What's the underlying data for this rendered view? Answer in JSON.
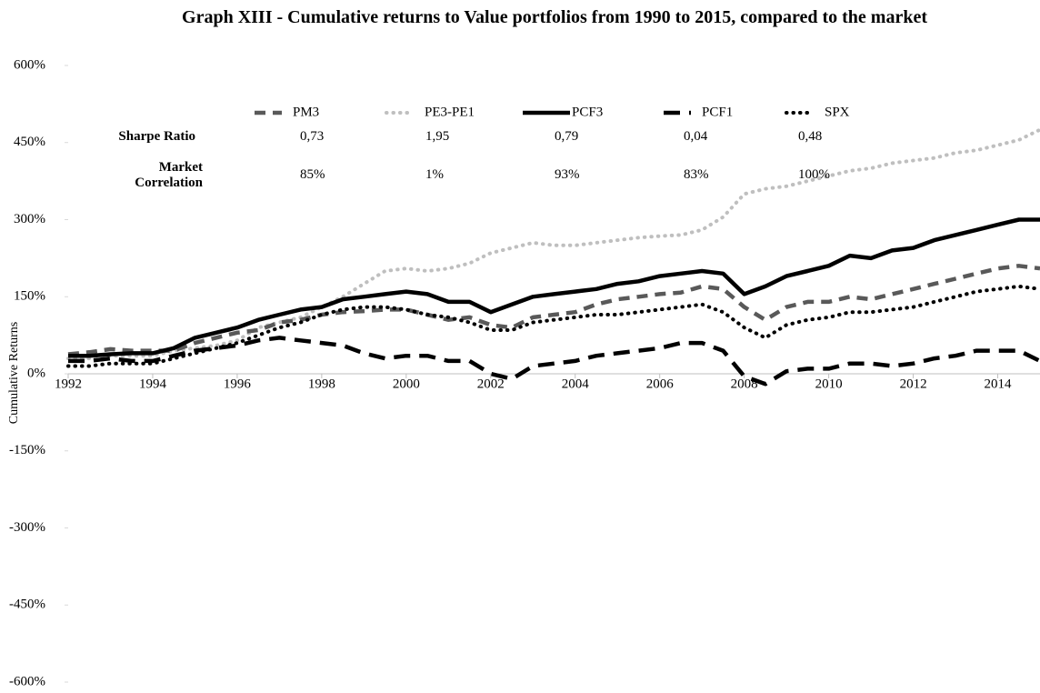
{
  "chart_data": {
    "type": "line",
    "title": "Graph XIII - Cumulative returns to Value portfolios from 1990 to 2015, compared to the market",
    "y_label": "Cumulative Returns",
    "x": [
      1992,
      1992.5,
      1993,
      1993.5,
      1994,
      1994.5,
      1995,
      1995.5,
      1996,
      1996.5,
      1997,
      1997.5,
      1998,
      1998.5,
      1999,
      1999.5,
      2000,
      2000.5,
      2001,
      2001.5,
      2002,
      2002.5,
      2003,
      2003.5,
      2004,
      2004.5,
      2005,
      2005.5,
      2006,
      2006.5,
      2007,
      2007.5,
      2008,
      2008.5,
      2009,
      2009.5,
      2010,
      2010.5,
      2011,
      2011.5,
      2012,
      2012.5,
      2013,
      2013.5,
      2014,
      2014.5,
      2015
    ],
    "series": [
      {
        "name": "PM3",
        "color": "#595959",
        "dash": "dash",
        "values": [
          38,
          42,
          48,
          45,
          45,
          45,
          60,
          70,
          80,
          85,
          100,
          105,
          115,
          120,
          122,
          125,
          125,
          115,
          105,
          110,
          95,
          90,
          110,
          115,
          120,
          135,
          145,
          150,
          155,
          158,
          170,
          165,
          130,
          105,
          130,
          140,
          140,
          150,
          145,
          155,
          165,
          175,
          185,
          195,
          205,
          210,
          205
        ]
      },
      {
        "name": "PE3-PE1",
        "color": "#bfbfbf",
        "dash": "dot",
        "values": [
          30,
          30,
          35,
          35,
          35,
          45,
          50,
          55,
          65,
          90,
          100,
          110,
          130,
          150,
          175,
          200,
          205,
          200,
          205,
          215,
          235,
          245,
          255,
          250,
          250,
          255,
          260,
          265,
          268,
          270,
          280,
          305,
          350,
          360,
          365,
          375,
          385,
          395,
          400,
          410,
          415,
          420,
          430,
          435,
          445,
          455,
          475
        ]
      },
      {
        "name": "PCF3",
        "color": "#000000",
        "dash": "solid",
        "values": [
          35,
          35,
          38,
          40,
          40,
          50,
          70,
          80,
          90,
          105,
          115,
          125,
          130,
          145,
          150,
          155,
          160,
          155,
          140,
          140,
          120,
          135,
          150,
          155,
          160,
          165,
          175,
          180,
          190,
          195,
          200,
          195,
          155,
          170,
          190,
          200,
          210,
          230,
          225,
          240,
          245,
          260,
          270,
          280,
          290,
          300,
          300
        ]
      },
      {
        "name": "PCF1",
        "color": "#000000",
        "dash": "longdash",
        "values": [
          25,
          25,
          30,
          25,
          25,
          35,
          45,
          50,
          55,
          65,
          70,
          65,
          60,
          55,
          40,
          30,
          35,
          35,
          25,
          25,
          0,
          -10,
          15,
          20,
          25,
          35,
          40,
          45,
          50,
          60,
          60,
          45,
          -5,
          -20,
          5,
          10,
          10,
          20,
          20,
          15,
          20,
          30,
          35,
          45,
          45,
          45,
          25
        ]
      },
      {
        "name": "SPX",
        "color": "#000000",
        "dash": "dot",
        "values": [
          15,
          15,
          20,
          20,
          20,
          30,
          40,
          50,
          60,
          75,
          90,
          100,
          115,
          125,
          130,
          130,
          125,
          115,
          110,
          100,
          85,
          85,
          100,
          105,
          110,
          115,
          115,
          120,
          125,
          130,
          135,
          120,
          90,
          70,
          95,
          105,
          110,
          120,
          120,
          125,
          130,
          140,
          150,
          160,
          165,
          170,
          165
        ]
      }
    ],
    "stats": [
      {
        "label": "Sharpe Ratio",
        "values": [
          "0,73",
          "1,95",
          "0,79",
          "0,04",
          "0,48"
        ]
      },
      {
        "label": "Market Correlation",
        "values": [
          "85%",
          "1%",
          "93%",
          "83%",
          "100%"
        ]
      }
    ],
    "xlim": [
      1992,
      2015
    ],
    "xticks": [
      1992,
      1994,
      1996,
      1998,
      2000,
      2002,
      2004,
      2006,
      2008,
      2010,
      2012,
      2014
    ],
    "ylim": [
      -600,
      600
    ],
    "yticks": [
      {
        "value": 600,
        "label": "600%"
      },
      {
        "value": 450,
        "label": "450%"
      },
      {
        "value": 300,
        "label": "300%"
      },
      {
        "value": 150,
        "label": "150%"
      },
      {
        "value": 0,
        "label": "0%"
      },
      {
        "value": -150,
        "label": "-150%"
      },
      {
        "value": -300,
        "label": "-300%"
      },
      {
        "value": -450,
        "label": "-450%"
      },
      {
        "value": -600,
        "label": "-600%"
      }
    ],
    "grid": false
  }
}
